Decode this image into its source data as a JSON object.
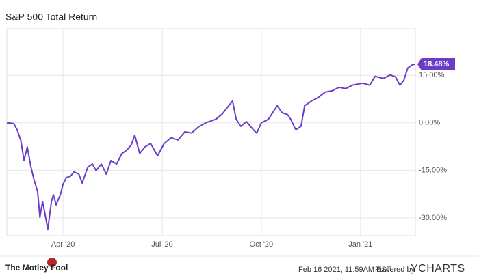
{
  "chart_data": {
    "type": "line",
    "title": "S&P 500 Total Return",
    "xlim": [
      1.3,
      13.66
    ],
    "xticks": [
      {
        "value": 3,
        "label": "Apr '20"
      },
      {
        "value": 6,
        "label": "Jul '20"
      },
      {
        "value": 9,
        "label": "Oct '20"
      },
      {
        "value": 12,
        "label": "Jan '21"
      }
    ],
    "ylim": [
      -35.6,
      29.7
    ],
    "yticks": [
      {
        "value": 15,
        "label": "15.00%"
      },
      {
        "value": 0,
        "label": "0.00%"
      },
      {
        "value": -15,
        "label": "-15.00%"
      },
      {
        "value": -30,
        "label": "-30.00%"
      }
    ],
    "grid": true,
    "series": [
      {
        "color": "#6a3cc8",
        "x": [
          1.3,
          1.51,
          1.61,
          1.72,
          1.82,
          1.92,
          2.03,
          2.13,
          2.23,
          2.3,
          2.38,
          2.44,
          2.54,
          2.65,
          2.71,
          2.79,
          2.92,
          3.0,
          3.1,
          3.23,
          3.33,
          3.48,
          3.58,
          3.75,
          3.89,
          4.0,
          4.16,
          4.31,
          4.45,
          4.62,
          4.78,
          4.93,
          5.07,
          5.17,
          5.32,
          5.48,
          5.65,
          5.86,
          6.06,
          6.27,
          6.48,
          6.69,
          6.89,
          7.1,
          7.31,
          7.62,
          7.82,
          7.93,
          8.13,
          8.24,
          8.38,
          8.55,
          8.76,
          8.86,
          9.0,
          9.21,
          9.48,
          9.63,
          9.79,
          9.89,
          10.04,
          10.2,
          10.31,
          10.52,
          10.72,
          10.93,
          11.14,
          11.35,
          11.55,
          11.76,
          12.06,
          12.28,
          12.44,
          12.69,
          12.9,
          13.06,
          13.19,
          13.31,
          13.43,
          13.58,
          13.66
        ],
        "values": [
          0,
          -0.2,
          -2.2,
          -5.4,
          -11.9,
          -7.6,
          -14,
          -18.3,
          -21.6,
          -29.8,
          -24.8,
          -28,
          -33.5,
          -24.8,
          -22.7,
          -25.9,
          -22.7,
          -19.4,
          -17.3,
          -16.8,
          -15.5,
          -16.2,
          -19,
          -14,
          -13,
          -15.1,
          -13,
          -16.2,
          -11.9,
          -13,
          -9.7,
          -8.6,
          -6.9,
          -3.9,
          -9.7,
          -7.6,
          -6.5,
          -10.4,
          -6.5,
          -4.7,
          -5.4,
          -2.8,
          -3.2,
          -1.3,
          0,
          1.1,
          2.8,
          4.3,
          6.9,
          1.1,
          -1.1,
          0.4,
          -2.2,
          -3.2,
          0,
          1.1,
          5.4,
          3.2,
          2.6,
          1.1,
          -2.2,
          -1.1,
          5.4,
          6.9,
          8,
          9.7,
          10.1,
          11.2,
          10.8,
          11.9,
          12.5,
          11.9,
          14.7,
          14,
          15.1,
          14.5,
          11.9,
          13.4,
          17.3,
          18.4,
          18.48
        ],
        "value_labels": [
          null,
          null,
          null,
          null,
          null,
          null,
          null,
          null,
          null,
          null,
          null,
          null,
          null,
          null,
          null,
          null,
          null,
          null,
          null,
          null,
          null,
          null,
          null,
          null,
          null,
          null,
          null,
          null,
          null,
          null,
          null,
          null,
          null,
          null,
          null,
          null,
          null,
          null,
          null,
          null,
          null,
          null,
          null,
          null,
          null,
          null,
          null,
          null,
          null,
          null,
          null,
          null,
          null,
          null,
          null,
          null,
          null,
          null,
          null,
          null,
          null,
          null,
          null,
          null,
          null,
          null,
          null,
          null,
          null,
          null,
          null,
          null,
          null,
          null,
          null,
          null,
          null,
          null,
          null,
          null,
          "18.48%"
        ]
      }
    ],
    "footer": {
      "brand": "The Motley Fool",
      "timestamp": "Feb 16 2021, 11:59AM EST.",
      "powered": "Powered by",
      "provider": "YCHARTS"
    }
  }
}
